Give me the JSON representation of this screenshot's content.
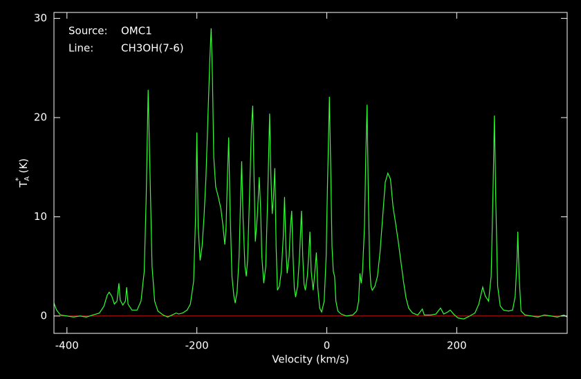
{
  "chart_data": {
    "type": "line",
    "x_label": "Velocity (km/s)",
    "y_label": {
      "symbol": "T",
      "sub": "A",
      "sup": "*",
      "unit": "(K)"
    },
    "annotations": [
      [
        "Source:",
        "OMC1"
      ],
      [
        "Line:",
        "CH3OH(7-6)"
      ]
    ],
    "xlim": [
      -420,
      370
    ],
    "ylim": [
      -1.75,
      30.6
    ],
    "xticks": [
      -400,
      -200,
      0,
      200
    ],
    "yticks": [
      0,
      10,
      20,
      30
    ],
    "baseline": 0,
    "baseline_color": "#e01010",
    "color": "#33ff33",
    "x": [
      -420,
      -416,
      -410,
      -400,
      -390,
      -380,
      -370,
      -360,
      -350,
      -343,
      -338,
      -335,
      -331,
      -327,
      -323,
      -320,
      -318,
      -314,
      -310,
      -308,
      -306,
      -300,
      -292,
      -286,
      -281,
      -278,
      -275,
      -272,
      -269,
      -265,
      -260,
      -252,
      -245,
      -238,
      -232,
      -228,
      -222,
      -215,
      -210,
      -205,
      -202,
      -200,
      -198,
      -195,
      -192,
      -189,
      -186,
      -183,
      -180,
      -178,
      -176,
      -174,
      -171,
      -167,
      -163,
      -160,
      -157,
      -155,
      -153,
      -151,
      -149,
      -146,
      -143,
      -141,
      -138,
      -135,
      -133,
      -131,
      -129,
      -126,
      -124,
      -122,
      -119,
      -116,
      -114,
      -112,
      -110,
      -107,
      -104,
      -102,
      -100,
      -97,
      -94,
      -91,
      -88,
      -86,
      -84,
      -82,
      -80,
      -78,
      -76,
      -73,
      -70,
      -67,
      -65,
      -63,
      -61,
      -58,
      -56,
      -54,
      -52,
      -50,
      -48,
      -45,
      -42,
      -39,
      -37,
      -35,
      -33,
      -30,
      -28,
      -26,
      -24,
      -21,
      -19,
      -16,
      -14,
      -11,
      -8,
      -4,
      -1,
      1,
      3,
      4,
      6,
      8,
      10,
      12,
      14,
      17,
      22,
      30,
      40,
      46,
      49,
      51,
      53,
      55,
      58,
      60,
      62,
      64,
      66,
      68,
      70,
      74,
      78,
      82,
      86,
      90,
      94,
      98,
      102,
      106,
      110,
      114,
      118,
      122,
      126,
      132,
      140,
      147,
      150,
      160,
      168,
      175,
      180,
      186,
      190,
      195,
      202,
      211,
      220,
      228,
      234,
      240,
      244,
      249,
      253,
      256,
      258,
      260,
      263,
      267,
      272,
      280,
      286,
      290,
      293,
      294,
      296,
      299,
      305,
      315,
      325,
      335,
      345,
      355,
      365,
      370
    ],
    "values": [
      1.3,
      0.6,
      0.1,
      0.0,
      -0.1,
      0.0,
      -0.1,
      0.1,
      0.3,
      1.0,
      2.1,
      2.4,
      2.0,
      1.2,
      1.5,
      3.3,
      1.6,
      1.1,
      1.5,
      2.9,
      1.2,
      0.6,
      0.6,
      1.5,
      4.5,
      12,
      22.8,
      14,
      5,
      1.5,
      0.5,
      0.1,
      -0.1,
      0.1,
      0.3,
      0.2,
      0.3,
      0.6,
      1.2,
      3.5,
      10,
      18.5,
      9,
      5.6,
      7,
      10,
      14,
      20,
      26,
      29,
      24,
      16,
      13,
      12,
      10.8,
      9.2,
      7.2,
      9,
      14,
      18,
      11,
      4,
      2.0,
      1.3,
      2.5,
      6,
      11,
      15.6,
      10,
      5,
      4.0,
      5.5,
      12,
      19,
      21.2,
      14,
      7.5,
      10,
      14,
      11,
      6,
      3.3,
      5,
      12,
      20.4,
      14,
      10.3,
      12,
      14.9,
      7,
      2.6,
      3,
      4.5,
      8,
      12,
      7,
      4.3,
      6,
      9,
      10.6,
      6,
      2.8,
      1.9,
      3,
      6,
      10.6,
      6,
      3.2,
      2.6,
      4,
      6,
      8.5,
      4.5,
      2.6,
      4,
      6.4,
      3,
      0.8,
      0.4,
      1.5,
      6,
      13,
      19,
      22.1,
      15,
      7,
      4.5,
      4.0,
      1.5,
      0.5,
      0.2,
      0.0,
      0.1,
      0.5,
      1.5,
      4.3,
      3.3,
      4.5,
      9,
      16,
      21.3,
      12,
      5,
      3,
      2.6,
      3,
      4,
      6.5,
      10,
      13.5,
      14.4,
      13.8,
      11,
      9.3,
      7.5,
      5.5,
      3.5,
      1.8,
      0.8,
      0.3,
      0.1,
      0.7,
      0.1,
      0.1,
      0.2,
      0.8,
      0.2,
      0.4,
      0.6,
      0.2,
      -0.2,
      -0.3,
      0,
      0.3,
      1.2,
      2.9,
      2.0,
      1.5,
      4,
      13,
      20.2,
      12,
      3,
      1.0,
      0.6,
      0.5,
      0.6,
      2,
      6,
      8.5,
      4,
      0.5,
      0.1,
      0.0,
      -0.1,
      0.1,
      0.0,
      -0.1,
      0.1,
      -0.1
    ]
  }
}
